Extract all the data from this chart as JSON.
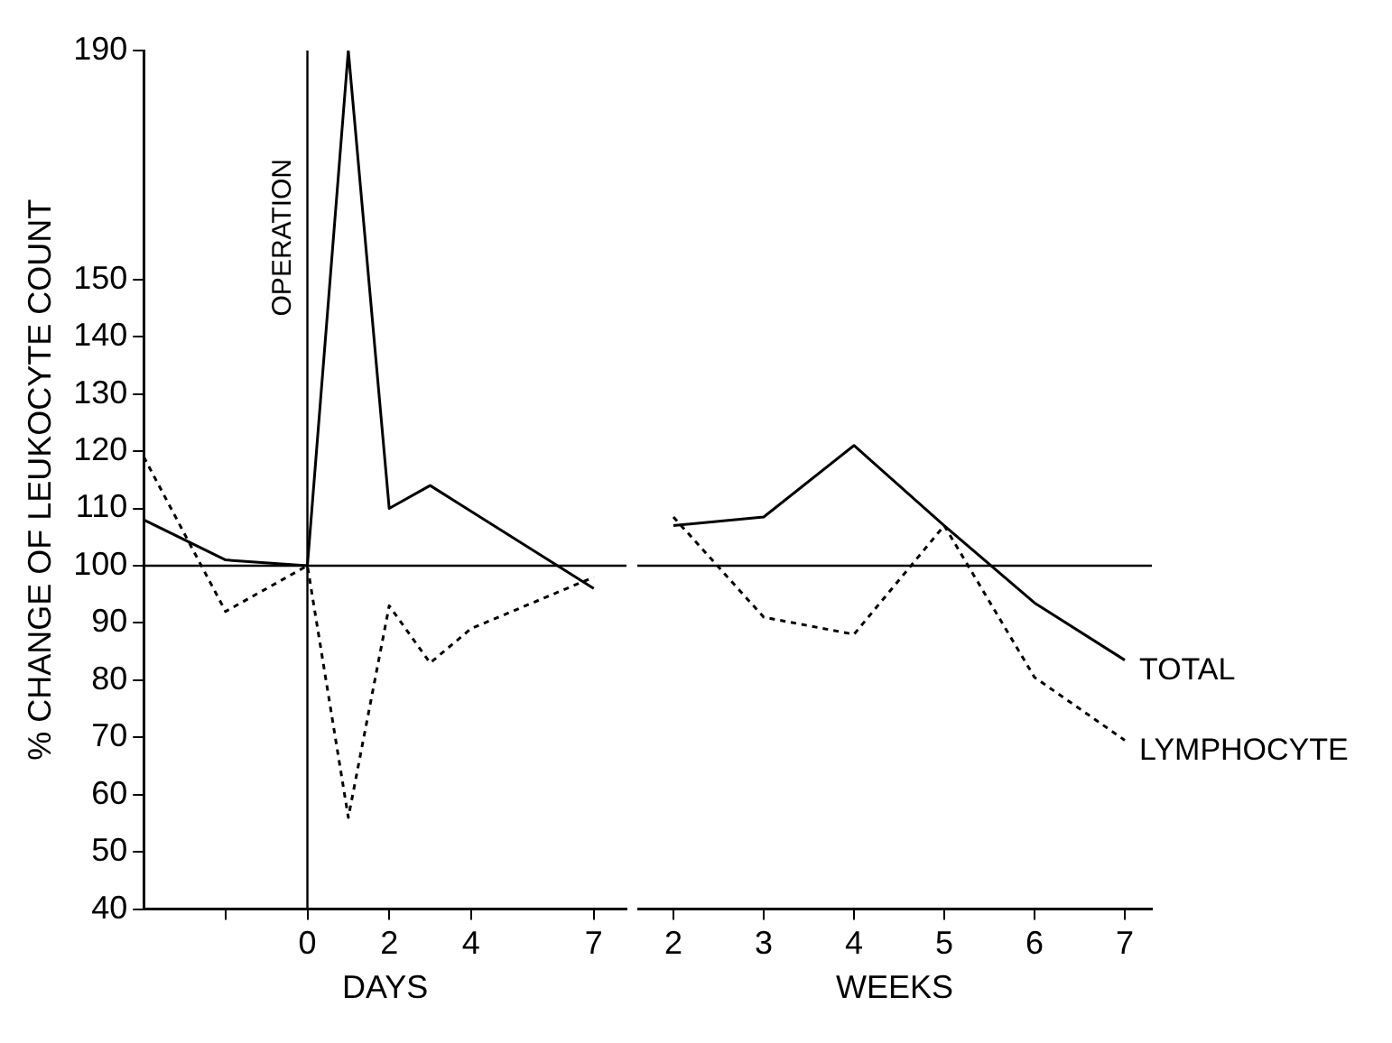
{
  "chart_data": [
    {
      "type": "line",
      "ylabel": "% CHANGE OF LEUKOCYTE COUNT",
      "xlabel": "DAYS",
      "xlim": [
        -4,
        7.8
      ],
      "xticks": [
        {
          "value": -2,
          "label": null
        },
        0,
        2,
        4,
        7
      ],
      "ylim": [
        40,
        190
      ],
      "yticks": [
        40,
        50,
        60,
        70,
        80,
        90,
        100,
        110,
        120,
        130,
        140,
        150,
        190
      ],
      "grid": false,
      "legend": false,
      "marker": "none",
      "series": [
        {
          "color": "#000000",
          "line_style": "solid",
          "x": [
            -4,
            -2,
            0,
            1,
            2,
            3,
            7
          ],
          "values": [
            108,
            101,
            100,
            190,
            110,
            114,
            96
          ]
        },
        {
          "color": "#000000",
          "line_style": "dotted",
          "x": [
            -4,
            -2,
            0,
            1,
            2,
            3,
            4,
            7
          ],
          "values": [
            119,
            92,
            100,
            56,
            93,
            83,
            89,
            98
          ]
        }
      ],
      "ref_lines": [
        {
          "axis": "y",
          "value": 100
        },
        {
          "axis": "x",
          "value": 0,
          "label": "OPERATION"
        }
      ]
    },
    {
      "type": "line",
      "xlabel": "WEEKS",
      "xlim": [
        1.6,
        7.3
      ],
      "xticks": [
        2,
        3,
        4,
        5,
        6,
        7
      ],
      "ylim": [
        40,
        190
      ],
      "tick_labels": "x",
      "grid": false,
      "legend": false,
      "marker": "none",
      "x": [
        2,
        3,
        4,
        5,
        6,
        7
      ],
      "series": [
        {
          "name": "TOTAL",
          "color": "#000000",
          "line_style": "solid",
          "values": [
            107,
            108.5,
            121,
            107,
            93.5,
            83.5
          ]
        },
        {
          "name": "LYMPHOCYTE",
          "color": "#000000",
          "line_style": "dotted",
          "values": [
            108.5,
            91,
            88,
            107,
            80.5,
            69.5
          ]
        }
      ],
      "ref_lines": [
        {
          "axis": "y",
          "value": 100
        }
      ]
    }
  ]
}
